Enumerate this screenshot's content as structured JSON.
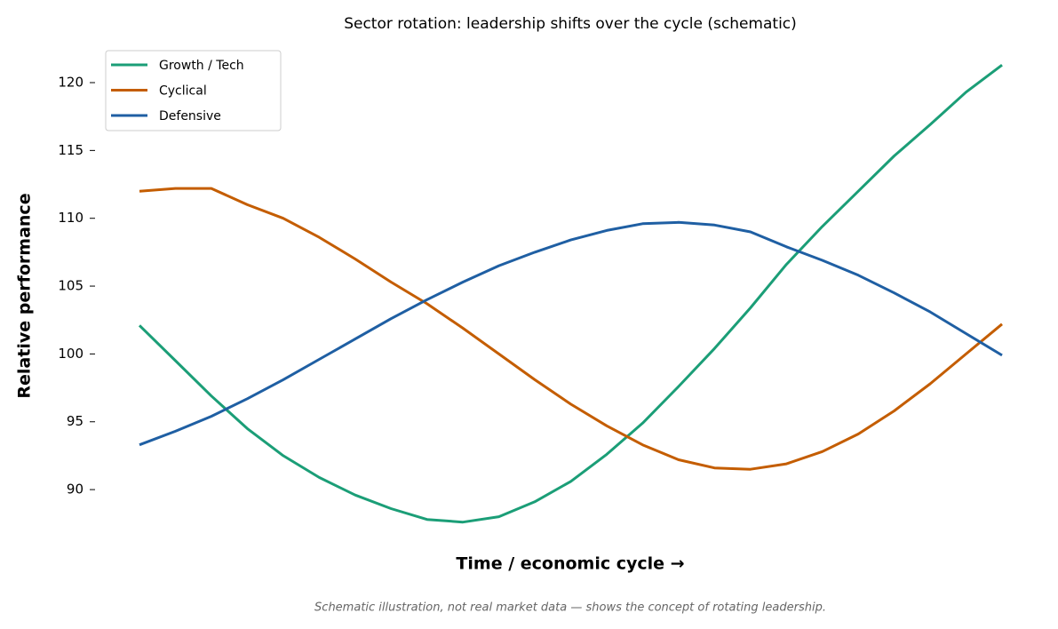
{
  "chart_data": {
    "type": "line",
    "title": "Sector rotation: leadership shifts over the cycle (schematic)",
    "x_label": "Time / economic cycle →",
    "y_label": "Relative performance",
    "note": "Schematic illustration, not real market data — shows the concept of rotating leadership.",
    "categories": [
      null,
      null,
      null,
      null,
      null,
      null,
      null,
      null,
      null,
      null,
      null,
      null,
      null,
      null,
      null,
      null,
      null,
      null,
      null,
      null,
      null,
      null,
      null,
      null,
      null
    ],
    "series": [
      {
        "name": "Growth / Tech",
        "color": "#1b9e77",
        "values": [
          102.1,
          99.5,
          96.9,
          94.5,
          92.5,
          90.9,
          89.6,
          88.6,
          87.8,
          87.6,
          88.0,
          89.1,
          90.6,
          92.6,
          94.9,
          97.6,
          100.4,
          103.4,
          106.6,
          109.4,
          112.0,
          114.6,
          116.9,
          119.3,
          121.3
        ]
      },
      {
        "name": "Cyclical",
        "color": "#c45d00",
        "values": [
          112.0,
          112.2,
          112.2,
          111.0,
          110.0,
          108.6,
          107.0,
          105.3,
          103.7,
          101.9,
          100.0,
          98.1,
          96.3,
          94.7,
          93.3,
          92.2,
          91.6,
          91.5,
          91.9,
          92.8,
          94.1,
          95.8,
          97.8,
          100.0,
          102.2
        ]
      },
      {
        "name": "Defensive",
        "color": "#1f5fa3",
        "values": [
          93.3,
          94.3,
          95.4,
          96.7,
          98.1,
          99.6,
          101.1,
          102.6,
          104.0,
          105.3,
          106.5,
          107.5,
          108.4,
          109.1,
          109.6,
          109.7,
          109.5,
          109.0,
          107.9,
          106.9,
          105.8,
          104.5,
          103.1,
          101.5,
          99.9
        ]
      }
    ],
    "ylim": [
      85.9,
      123
    ],
    "yticks": [
      90,
      95,
      100,
      105,
      110,
      115,
      120
    ],
    "legend": "upper left",
    "grid": false
  }
}
